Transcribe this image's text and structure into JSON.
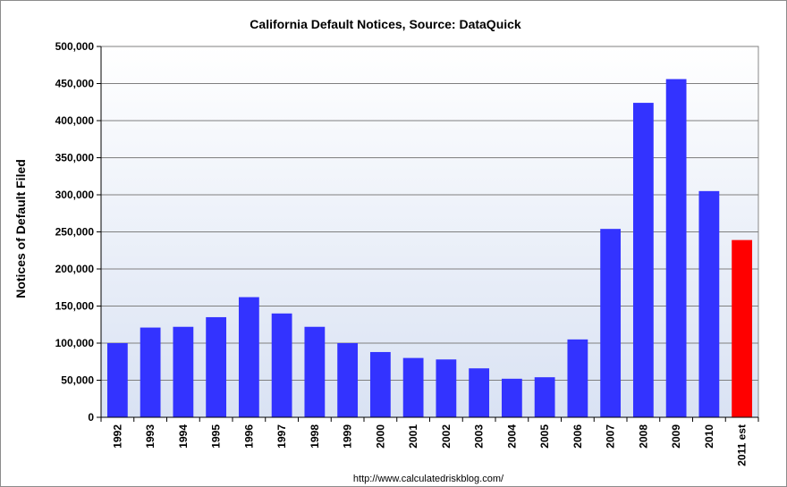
{
  "chart_data": {
    "type": "bar",
    "title": "California Default Notices, Source: DataQuick",
    "xlabel": "",
    "ylabel": "Notices of Default Filed",
    "ylim": [
      0,
      500000
    ],
    "yticks": [
      "0",
      "50,000",
      "100,000",
      "150,000",
      "200,000",
      "250,000",
      "300,000",
      "350,000",
      "400,000",
      "450,000",
      "500,000"
    ],
    "grid": true,
    "legend": "none",
    "categories": [
      "1992",
      "1993",
      "1994",
      "1995",
      "1996",
      "1997",
      "1998",
      "1999",
      "2000",
      "2001",
      "2002",
      "2003",
      "2004",
      "2005",
      "2006",
      "2007",
      "2008",
      "2009",
      "2010",
      "2011 est"
    ],
    "values": [
      100000,
      121000,
      122000,
      135000,
      162000,
      140000,
      122000,
      100000,
      88000,
      80000,
      78000,
      66000,
      52000,
      54000,
      105000,
      254000,
      424000,
      456000,
      305000,
      239000
    ],
    "colors": {
      "bar": "#3333ff",
      "highlight": "#ff0000",
      "plot_background": "#e6ecf7",
      "gridline": "#7f7f7f"
    },
    "highlight_category": "2011 est",
    "source_url": "http://www.calculatedriskblog.com/"
  }
}
